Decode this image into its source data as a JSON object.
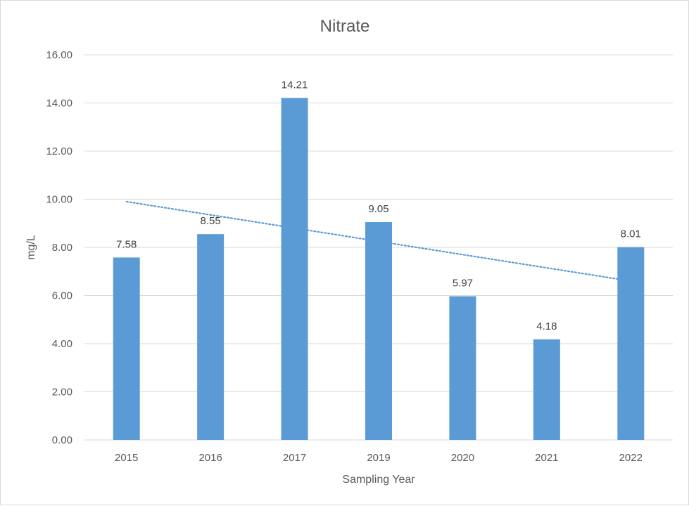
{
  "chart_data": {
    "type": "bar",
    "title": "Nitrate",
    "xlabel": "Sampling Year",
    "ylabel": "mg/L",
    "categories": [
      "2015",
      "2016",
      "2017",
      "2019",
      "2020",
      "2021",
      "2022"
    ],
    "values": [
      7.58,
      8.55,
      14.21,
      9.05,
      5.97,
      4.18,
      8.01
    ],
    "data_labels": [
      "7.58",
      "8.55",
      "14.21",
      "9.05",
      "5.97",
      "4.18",
      "8.01"
    ],
    "ylim": [
      0,
      16
    ],
    "yticks": [
      0,
      2,
      4,
      6,
      8,
      10,
      12,
      14,
      16
    ],
    "ytick_labels": [
      "0.00",
      "2.00",
      "4.00",
      "6.00",
      "8.00",
      "10.00",
      "12.00",
      "14.00",
      "16.00"
    ],
    "grid": true,
    "legend": false,
    "trendline": {
      "type": "linear",
      "style": "dotted",
      "start_value": 9.9,
      "end_value": 6.6
    },
    "colors": {
      "bar": "#5b9bd5",
      "trendline": "#5b9bd5",
      "grid": "#d9d9d9",
      "text": "#595959"
    }
  }
}
